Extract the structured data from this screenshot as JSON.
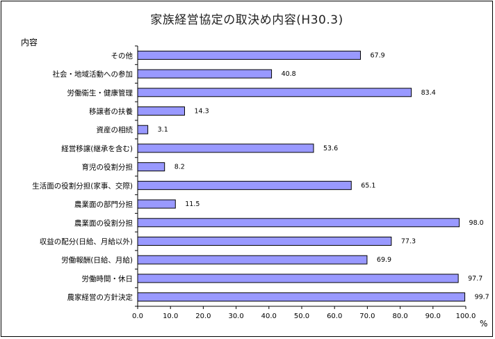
{
  "chart_data": {
    "type": "bar",
    "orientation": "horizontal",
    "title": "家族経営協定の取決め内容(H30.3)",
    "ylabel": "内容",
    "xlabel_unit": "%",
    "xlim": [
      0,
      100
    ],
    "xticks": [
      "0.0",
      "10.0",
      "20.0",
      "30.0",
      "40.0",
      "50.0",
      "60.0",
      "70.0",
      "80.0",
      "90.0",
      "100.0"
    ],
    "categories": [
      "その他",
      "社会・地域活動への参加",
      "労働衛生・健康管理",
      "移譲者の扶養",
      "資産の相続",
      "経営移譲(継承を含む)",
      "育児の役割分担",
      "生活面の役割分担(家事、交際)",
      "農業面の部門分担",
      "農業面の役割分担",
      "収益の配分(日給、月給以外)",
      "労働報酬(日給、月給)",
      "労働時間・休日",
      "農家経営の方針決定"
    ],
    "values": [
      67.9,
      40.8,
      83.4,
      14.3,
      3.1,
      53.6,
      8.2,
      65.1,
      11.5,
      98.0,
      77.3,
      69.9,
      97.7,
      99.7
    ],
    "value_labels": [
      "67.9",
      "40.8",
      "83.4",
      "14.3",
      "3.1",
      "53.6",
      "8.2",
      "65.1",
      "11.5",
      "98.0",
      "77.3",
      "69.9",
      "97.7",
      "99.7"
    ],
    "grid": false,
    "bar_color": "#9999ff",
    "bar_stroke": "#000000"
  }
}
